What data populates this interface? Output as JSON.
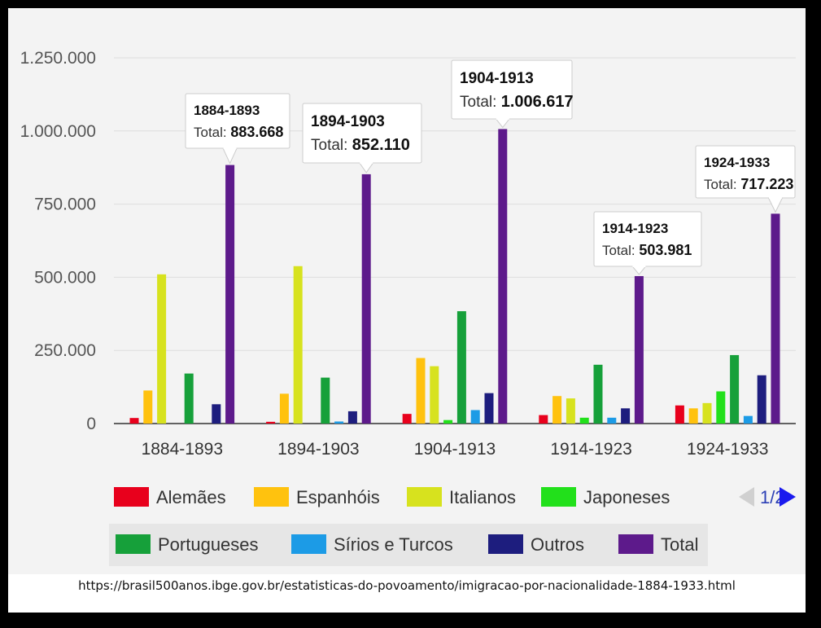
{
  "chart_data": {
    "type": "bar",
    "categories": [
      "1884-1893",
      "1894-1903",
      "1904-1913",
      "1914-1923",
      "1924-1933"
    ],
    "series": [
      {
        "name": "Alemães",
        "color": "#e8001c",
        "values": [
          19000,
          6000,
          33000,
          29000,
          62000
        ]
      },
      {
        "name": "Espanhóis",
        "color": "#ffc20e",
        "values": [
          113000,
          102000,
          224000,
          94000,
          52000
        ]
      },
      {
        "name": "Italianos",
        "color": "#d7e21e",
        "values": [
          510000,
          538000,
          196000,
          86000,
          70000
        ]
      },
      {
        "name": "Japoneses",
        "color": "#22e01b",
        "values": [
          0,
          0,
          12000,
          20000,
          110000
        ]
      },
      {
        "name": "Portugueses",
        "color": "#16a03a",
        "values": [
          171000,
          157000,
          384000,
          201000,
          234000
        ]
      },
      {
        "name": "Sírios e Turcos",
        "color": "#1c9be6",
        "values": [
          0,
          7000,
          46000,
          20000,
          26000
        ]
      },
      {
        "name": "Outros",
        "color": "#1d1d7e",
        "values": [
          66000,
          42000,
          104000,
          52000,
          165000
        ]
      },
      {
        "name": "Total",
        "color": "#5d1a8b",
        "values": [
          883668,
          852110,
          1006617,
          503981,
          717223
        ]
      }
    ],
    "ylim": [
      0,
      1250000
    ],
    "yticks": [
      0,
      250000,
      500000,
      750000,
      1000000,
      1250000
    ],
    "ytick_labels": [
      "0",
      "250.000",
      "500.000",
      "750.000",
      "1.000.000",
      "1.250.000"
    ],
    "grid": true,
    "tooltips": [
      {
        "period": "1884-1893",
        "total_label": "Total:",
        "total_value": "883.668"
      },
      {
        "period": "1894-1903",
        "total_label": "Total:",
        "total_value": "852.110"
      },
      {
        "period": "1904-1913",
        "total_label": "Total:",
        "total_value": "1.006.617"
      },
      {
        "period": "1914-1923",
        "total_label": "Total:",
        "total_value": "503.981"
      },
      {
        "period": "1924-1933",
        "total_label": "Total:",
        "total_value": "717.223"
      }
    ],
    "legend_position": "bottom"
  },
  "legend_pager": {
    "text": "1/2",
    "prev_icon": "triangle-left-icon",
    "next_icon": "triangle-right-icon"
  },
  "source": {
    "url": "https://brasil500anos.ibge.gov.br/estatisticas-do-povoamento/imigracao-por-nacionalidade-1884-1933.html"
  }
}
